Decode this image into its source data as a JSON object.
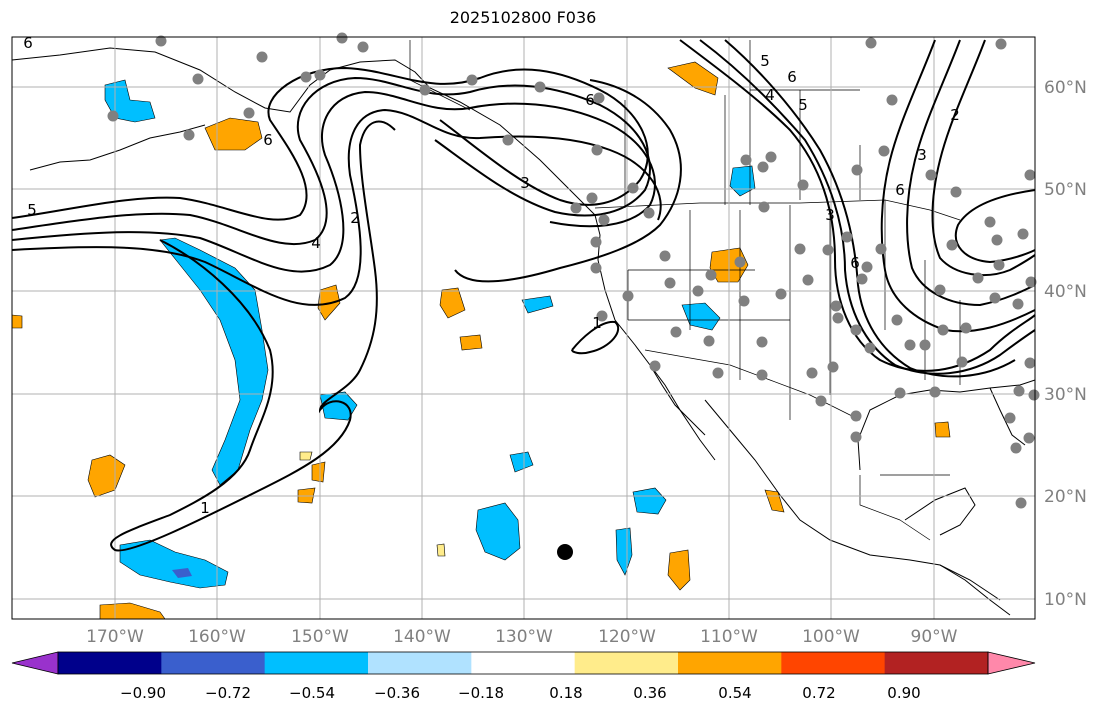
{
  "title": "2025102800 F036",
  "longitude_labels": [
    "170°W",
    "160°W",
    "150°W",
    "140°W",
    "130°W",
    "120°W",
    "110°W",
    "100°W",
    "90°W"
  ],
  "latitude_labels": [
    "60°N",
    "50°N",
    "40°N",
    "30°N",
    "20°N",
    "10°N"
  ],
  "contour_labels": [
    "6",
    "5",
    "6",
    "4",
    "2",
    "1",
    "1",
    "3",
    "5",
    "6",
    "4",
    "5",
    "6",
    "3",
    "6",
    "2",
    "3",
    "6"
  ],
  "colorbar": {
    "tick_labels": [
      "−0.90",
      "−0.72",
      "−0.54",
      "−0.36",
      "−0.18",
      "0.18",
      "0.36",
      "0.54",
      "0.72",
      "0.90"
    ],
    "colors": [
      "#9932cc",
      "#00008b",
      "#3a5fcd",
      "#00bfff",
      "#b0e2ff",
      "#ffffff",
      "#ffec8b",
      "#ffa500",
      "#ff4500",
      "#b22222",
      "#ff88aa"
    ]
  },
  "colors": {
    "gray_station": "#808080",
    "grid": "#b0b0b0",
    "contour": "#000000"
  }
}
